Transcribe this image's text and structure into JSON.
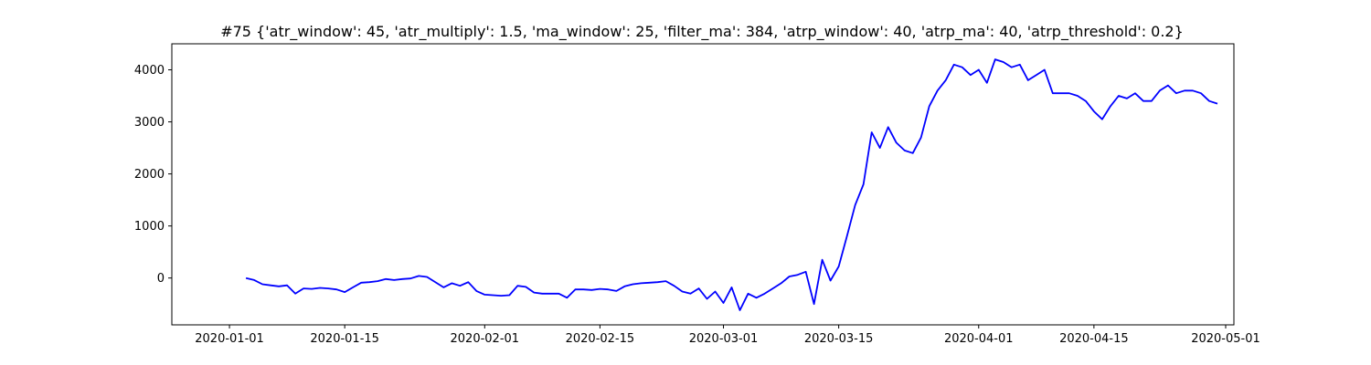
{
  "chart_data": {
    "type": "line",
    "title": "#75 {'atr_window': 45, 'atr_multiply': 1.5, 'ma_window': 25, 'filter_ma': 384, 'atrp_window': 40, 'atrp_ma': 40, 'atrp_threshold': 0.2}",
    "xlabel": "",
    "ylabel": "",
    "x_tick_labels": [
      "2020-01-01",
      "2020-01-15",
      "2020-02-01",
      "2020-02-15",
      "2020-03-01",
      "2020-03-15",
      "2020-04-01",
      "2020-04-15",
      "2020-05-01"
    ],
    "y_ticks": [
      0,
      1000,
      2000,
      3000,
      4000
    ],
    "xlim": [
      "2019-12-25",
      "2020-05-02"
    ],
    "ylim": [
      -900,
      4500
    ],
    "grid": false,
    "line_color": "#0000ff",
    "series": [
      {
        "x": [
          "2020-01-03",
          "2020-01-04",
          "2020-01-05",
          "2020-01-06",
          "2020-01-07",
          "2020-01-08",
          "2020-01-09",
          "2020-01-10",
          "2020-01-11",
          "2020-01-12",
          "2020-01-13",
          "2020-01-14",
          "2020-01-15",
          "2020-01-16",
          "2020-01-17",
          "2020-01-18",
          "2020-01-19",
          "2020-01-20",
          "2020-01-21",
          "2020-01-22",
          "2020-01-23",
          "2020-01-24",
          "2020-01-25",
          "2020-01-27",
          "2020-01-28",
          "2020-01-29",
          "2020-01-30",
          "2020-01-31",
          "2020-02-01",
          "2020-02-03",
          "2020-02-04",
          "2020-02-05",
          "2020-02-06",
          "2020-02-07",
          "2020-02-08",
          "2020-02-10",
          "2020-02-11",
          "2020-02-12",
          "2020-02-13",
          "2020-02-14",
          "2020-02-15",
          "2020-02-16",
          "2020-02-17",
          "2020-02-18",
          "2020-02-19",
          "2020-02-20",
          "2020-02-21",
          "2020-02-22",
          "2020-02-23",
          "2020-02-24",
          "2020-02-25",
          "2020-02-26",
          "2020-02-27",
          "2020-02-28",
          "2020-02-29",
          "2020-03-01",
          "2020-03-02",
          "2020-03-03",
          "2020-03-04",
          "2020-03-05",
          "2020-03-06",
          "2020-03-07",
          "2020-03-08",
          "2020-03-09",
          "2020-03-10",
          "2020-03-11",
          "2020-03-12",
          "2020-03-13",
          "2020-03-14",
          "2020-03-15",
          "2020-03-16",
          "2020-03-17",
          "2020-03-18",
          "2020-03-19",
          "2020-03-20",
          "2020-03-21",
          "2020-03-22",
          "2020-03-23",
          "2020-03-24",
          "2020-03-25",
          "2020-03-26",
          "2020-03-27",
          "2020-03-28",
          "2020-03-29",
          "2020-03-30",
          "2020-03-31",
          "2020-04-01",
          "2020-04-02",
          "2020-04-03",
          "2020-04-04",
          "2020-04-05",
          "2020-04-06",
          "2020-04-07",
          "2020-04-08",
          "2020-04-09",
          "2020-04-10",
          "2020-04-11",
          "2020-04-12",
          "2020-04-13",
          "2020-04-14",
          "2020-04-15",
          "2020-04-16",
          "2020-04-17",
          "2020-04-18",
          "2020-04-19",
          "2020-04-20",
          "2020-04-21",
          "2020-04-22",
          "2020-04-23",
          "2020-04-24",
          "2020-04-25",
          "2020-04-26",
          "2020-04-27",
          "2020-04-28",
          "2020-04-29",
          "2020-04-30"
        ],
        "y": [
          0,
          -40,
          -120,
          -140,
          -160,
          -140,
          -300,
          -200,
          -210,
          -190,
          -200,
          -220,
          -270,
          -180,
          -90,
          -80,
          -60,
          -20,
          -40,
          -20,
          -10,
          40,
          20,
          -180,
          -100,
          -150,
          -80,
          -250,
          -320,
          -340,
          -330,
          -150,
          -170,
          -280,
          -300,
          -300,
          -380,
          -220,
          -220,
          -230,
          -210,
          -220,
          -250,
          -160,
          -120,
          -100,
          -90,
          -80,
          -60,
          -150,
          -260,
          -300,
          -200,
          -400,
          -260,
          -480,
          -180,
          -620,
          -300,
          -380,
          -300,
          -200,
          -100,
          30,
          60,
          120,
          -500,
          350,
          -50,
          220,
          800,
          1400,
          1800,
          2800,
          2500,
          2900,
          2600,
          2450,
          2400,
          2700,
          3300,
          3600,
          3800,
          4100,
          4050,
          3900,
          4000,
          3750,
          4200,
          4150,
          4050,
          4100,
          3800,
          3900,
          4000,
          3550,
          3550,
          3550,
          3500,
          3400,
          3200,
          3050,
          3300,
          3500,
          3450,
          3550,
          3400,
          3400,
          3600,
          3700,
          3550,
          3600,
          3600,
          3550,
          3400,
          3350
        ]
      }
    ]
  }
}
